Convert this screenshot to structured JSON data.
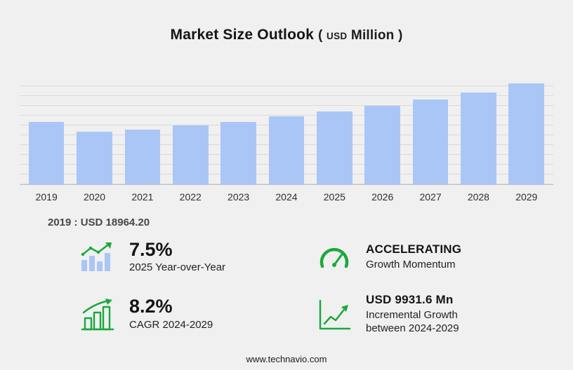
{
  "title": {
    "main": "Market Size Outlook",
    "open_paren": "(",
    "currency": "USD",
    "unit": "Million",
    "close_paren": ")"
  },
  "chart_data": {
    "type": "bar",
    "title": "Market Size Outlook (USD Million)",
    "categories": [
      "2019",
      "2020",
      "2021",
      "2022",
      "2023",
      "2024",
      "2025",
      "2026",
      "2027",
      "2028",
      "2029"
    ],
    "values": [
      18964.2,
      15950,
      16650,
      17900,
      18970,
      20548,
      22089,
      23750,
      25650,
      27800,
      30480
    ],
    "ylabel": "USD Million",
    "ylim": [
      0,
      31200
    ],
    "grid": true,
    "legend": false,
    "bar_color": "#a9c6f7"
  },
  "annotation": {
    "text": "2019 : USD 18964.20"
  },
  "stats": {
    "items": [
      {
        "icon": "yoy-growth-icon",
        "value": "7.5%",
        "label": "2025 Year-over-Year"
      },
      {
        "icon": "speedometer-icon",
        "value": "ACCELERATING",
        "label": "Growth Momentum"
      },
      {
        "icon": "cagr-bars-icon",
        "value": "8.2%",
        "label": "CAGR 2024-2029"
      },
      {
        "icon": "incremental-growth-icon",
        "value": "USD 9931.6 Mn",
        "label": "Incremental Growth",
        "label2": "between 2024-2029"
      }
    ]
  },
  "footer": {
    "url": "www.technavio.com"
  },
  "colors": {
    "green": "#1aa83c",
    "bar_fill": "#a9c6f7",
    "background": "#f0f0f0",
    "gridline": "#d9d9d9"
  }
}
